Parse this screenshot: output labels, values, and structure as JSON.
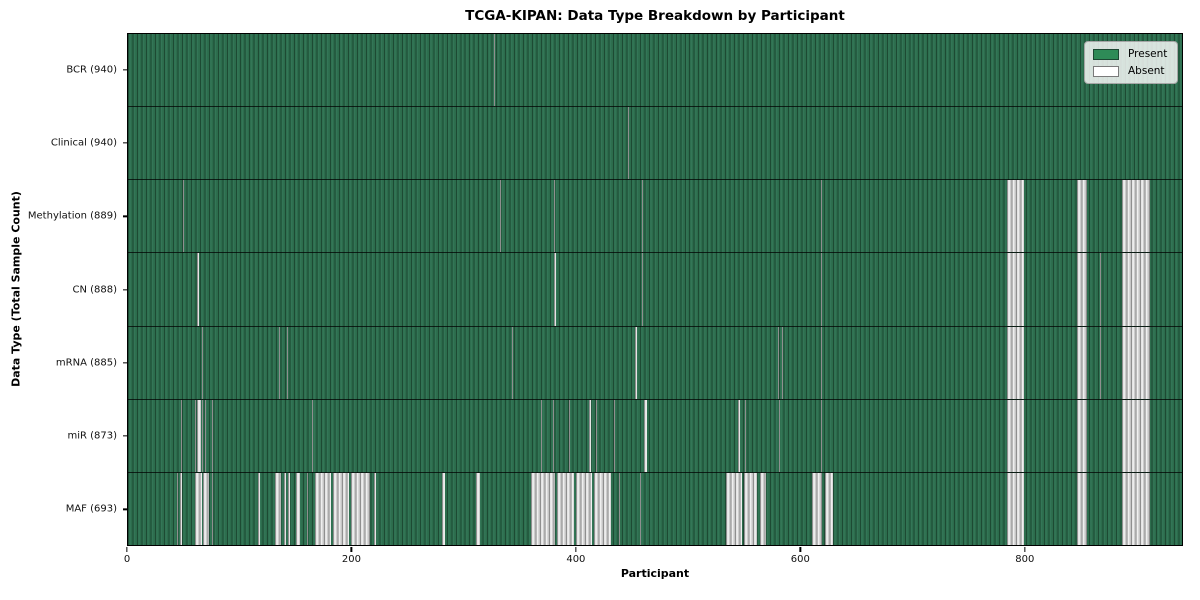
{
  "chart_data": {
    "type": "heatmap",
    "title": "TCGA-KIPAN: Data Type Breakdown by Participant",
    "xlabel": "Participant",
    "ylabel": "Data Type (Total Sample Count)",
    "n_participants": 941,
    "x_ticks": [
      0,
      200,
      400,
      600,
      800
    ],
    "grid": false,
    "legend_position": "upper right",
    "colors": {
      "present": "#2e8b57",
      "absent": "#ffffff",
      "row_separator": "#000000",
      "plot_border": "#000000"
    },
    "legend": {
      "items": [
        {
          "label": "Present",
          "color": "#2e8b57"
        },
        {
          "label": "Absent",
          "color": "#ffffff"
        }
      ]
    },
    "rows": [
      {
        "label": "BCR (940)",
        "data_type": "BCR",
        "total_samples": 940,
        "absent_ranges": [
          [
            327,
            328
          ]
        ]
      },
      {
        "label": "Clinical (940)",
        "data_type": "Clinical",
        "total_samples": 940,
        "absent_ranges": [
          [
            446,
            447
          ]
        ]
      },
      {
        "label": "Methylation (889)",
        "data_type": "Methylation",
        "total_samples": 889,
        "absent_ranges": [
          [
            49,
            50
          ],
          [
            332,
            333
          ],
          [
            380,
            381
          ],
          [
            459,
            460
          ],
          [
            619,
            620
          ],
          [
            785,
            800
          ],
          [
            847,
            856
          ],
          [
            887,
            912
          ]
        ]
      },
      {
        "label": "CN (888)",
        "data_type": "CN",
        "total_samples": 888,
        "absent_ranges": [
          [
            62,
            63
          ],
          [
            380,
            382
          ],
          [
            459,
            460
          ],
          [
            619,
            620
          ],
          [
            785,
            800
          ],
          [
            847,
            856
          ],
          [
            868,
            869
          ],
          [
            887,
            912
          ]
        ]
      },
      {
        "label": "mRNA (885)",
        "data_type": "mRNA",
        "total_samples": 885,
        "absent_ranges": [
          [
            66,
            67
          ],
          [
            135,
            136
          ],
          [
            142,
            143
          ],
          [
            343,
            344
          ],
          [
            453,
            454
          ],
          [
            580,
            581
          ],
          [
            584,
            585
          ],
          [
            619,
            620
          ],
          [
            785,
            800
          ],
          [
            847,
            856
          ],
          [
            868,
            869
          ],
          [
            887,
            912
          ]
        ]
      },
      {
        "label": "miR (873)",
        "data_type": "miR",
        "total_samples": 873,
        "absent_ranges": [
          [
            47,
            48
          ],
          [
            60,
            61
          ],
          [
            62,
            65
          ],
          [
            66,
            67
          ],
          [
            69,
            70
          ],
          [
            75,
            76
          ],
          [
            164,
            165
          ],
          [
            369,
            370
          ],
          [
            379,
            380
          ],
          [
            394,
            395
          ],
          [
            412,
            413
          ],
          [
            418,
            419
          ],
          [
            434,
            435
          ],
          [
            461,
            463
          ],
          [
            545,
            546
          ],
          [
            551,
            552
          ],
          [
            581,
            582
          ],
          [
            619,
            620
          ],
          [
            785,
            800
          ],
          [
            847,
            856
          ],
          [
            887,
            912
          ]
        ]
      },
      {
        "label": "MAF (693)",
        "data_type": "MAF",
        "total_samples": 693,
        "absent_ranges": [
          [
            44,
            45
          ],
          [
            46,
            48
          ],
          [
            60,
            66
          ],
          [
            67,
            72
          ],
          [
            75,
            76
          ],
          [
            116,
            118
          ],
          [
            131,
            137
          ],
          [
            139,
            141
          ],
          [
            143,
            145
          ],
          [
            150,
            154
          ],
          [
            160,
            161
          ],
          [
            167,
            181
          ],
          [
            183,
            197
          ],
          [
            199,
            216
          ],
          [
            220,
            221
          ],
          [
            280,
            283
          ],
          [
            311,
            314
          ],
          [
            360,
            381
          ],
          [
            383,
            398
          ],
          [
            400,
            414
          ],
          [
            416,
            431
          ],
          [
            438,
            439
          ],
          [
            457,
            458
          ],
          [
            534,
            548
          ],
          [
            550,
            562
          ],
          [
            564,
            570
          ],
          [
            611,
            620
          ],
          [
            622,
            629
          ],
          [
            785,
            800
          ],
          [
            847,
            856
          ],
          [
            887,
            912
          ]
        ]
      }
    ]
  }
}
